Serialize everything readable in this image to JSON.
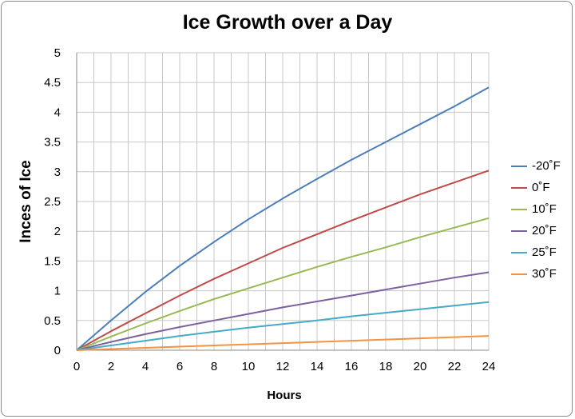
{
  "chart_data": {
    "type": "line",
    "title": "Ice Growth over a Day",
    "xlabel": "Hours",
    "ylabel": "Inces of Ice",
    "xlim": [
      0,
      24
    ],
    "ylim": [
      0,
      5
    ],
    "xticks": [
      "0",
      "2",
      "4",
      "6",
      "8",
      "10",
      "12",
      "14",
      "16",
      "18",
      "20",
      "22",
      "24"
    ],
    "yticks": [
      "0",
      "0.5",
      "1",
      "1.5",
      "2",
      "2.5",
      "3",
      "3.5",
      "4",
      "4.5",
      "5"
    ],
    "grid": true,
    "legend_position": "right",
    "x": [
      0,
      2,
      4,
      6,
      8,
      10,
      12,
      14,
      16,
      18,
      20,
      22,
      24
    ],
    "series": [
      {
        "name": "-20˚F",
        "color": "#4a7ebb",
        "values": [
          0,
          0.5,
          0.98,
          1.42,
          1.82,
          2.2,
          2.55,
          2.88,
          3.2,
          3.5,
          3.8,
          4.1,
          4.42
        ]
      },
      {
        "name": "0˚F",
        "color": "#be4b48",
        "values": [
          0,
          0.32,
          0.62,
          0.92,
          1.2,
          1.46,
          1.72,
          1.95,
          2.18,
          2.4,
          2.62,
          2.82,
          3.02
        ]
      },
      {
        "name": "10˚F",
        "color": "#98b954",
        "values": [
          0,
          0.23,
          0.45,
          0.66,
          0.86,
          1.04,
          1.22,
          1.4,
          1.57,
          1.73,
          1.9,
          2.06,
          2.22
        ]
      },
      {
        "name": "20˚F",
        "color": "#7d60a0",
        "values": [
          0,
          0.14,
          0.27,
          0.39,
          0.5,
          0.61,
          0.72,
          0.82,
          0.92,
          1.02,
          1.12,
          1.22,
          1.31
        ]
      },
      {
        "name": "25˚F",
        "color": "#46aac5",
        "values": [
          0,
          0.08,
          0.16,
          0.24,
          0.31,
          0.38,
          0.44,
          0.5,
          0.57,
          0.63,
          0.69,
          0.75,
          0.81
        ]
      },
      {
        "name": "30˚F",
        "color": "#f69240",
        "values": [
          0,
          0.02,
          0.04,
          0.06,
          0.08,
          0.1,
          0.12,
          0.14,
          0.16,
          0.18,
          0.2,
          0.22,
          0.24
        ]
      }
    ]
  }
}
